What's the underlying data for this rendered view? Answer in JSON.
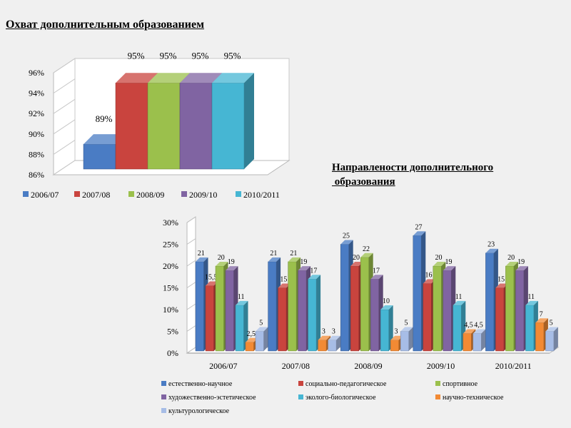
{
  "title_top": "Охват дополнительным образованием",
  "title_bottom_lines": [
    "Направлености дополнительного",
    " образования"
  ],
  "chart_data": [
    {
      "type": "bar",
      "title": "Охват дополнительным образованием",
      "categories": [
        "2006/07",
        "2007/08",
        "2008/09",
        "2009/10",
        "2010/2011"
      ],
      "values": [
        89,
        95,
        95,
        95,
        95
      ],
      "value_labels": [
        "89%",
        "95%",
        "95%",
        "95%",
        "95%"
      ],
      "ylim": [
        86,
        96
      ],
      "y_ticks": [
        "86%",
        "88%",
        "90%",
        "92%",
        "94%",
        "96%"
      ],
      "colors": [
        "#4a7cc4",
        "#c9443e",
        "#9bc04c",
        "#8064a2",
        "#46b6d3"
      ],
      "legend_position": "bottom",
      "grid": false
    },
    {
      "type": "bar",
      "title": "Направлености дополнительного образования",
      "categories": [
        "2006/07",
        "2007/08",
        "2008/09",
        "2009/10",
        "2010/2011"
      ],
      "ylim": [
        0,
        30
      ],
      "y_ticks": [
        "0%",
        "5%",
        "10%",
        "15%",
        "20%",
        "25%",
        "30%"
      ],
      "legend_position": "bottom",
      "grid": false,
      "series": [
        {
          "name": "естественно-научное",
          "color": "#4a7cc4",
          "values": [
            21,
            21,
            25,
            27,
            23
          ],
          "labels": [
            "21",
            "21",
            "25",
            "27",
            "23"
          ]
        },
        {
          "name": "социально-педагогическое",
          "color": "#c9443e",
          "values": [
            15.5,
            15,
            20,
            16,
            15
          ],
          "labels": [
            "15,5",
            "15",
            "20",
            "16",
            "15"
          ]
        },
        {
          "name": "спортивное",
          "color": "#9bc04c",
          "values": [
            20,
            21,
            22,
            20,
            20
          ],
          "labels": [
            "20",
            "21",
            "22",
            "20",
            "20"
          ]
        },
        {
          "name": "художественно-эстетическое",
          "color": "#8064a2",
          "values": [
            19,
            19,
            17,
            19,
            19
          ],
          "labels": [
            "19",
            "19",
            "17",
            "19",
            "19"
          ]
        },
        {
          "name": "эколого-биологическое",
          "color": "#46b6d3",
          "values": [
            11,
            17,
            10,
            11,
            11
          ],
          "labels": [
            "11",
            "17",
            "10",
            "11",
            "11"
          ]
        },
        {
          "name": "научно-техническое",
          "color": "#f28a34",
          "values": [
            2.5,
            3,
            3,
            4.5,
            7
          ],
          "labels": [
            "2,5",
            "3",
            "3",
            "4,5",
            "7"
          ]
        },
        {
          "name": "культурологическое",
          "color": "#a7bde6",
          "values": [
            5,
            3,
            5,
            4.5,
            5
          ],
          "labels": [
            "5",
            "3",
            "5",
            "4,5",
            "5"
          ]
        }
      ]
    }
  ]
}
